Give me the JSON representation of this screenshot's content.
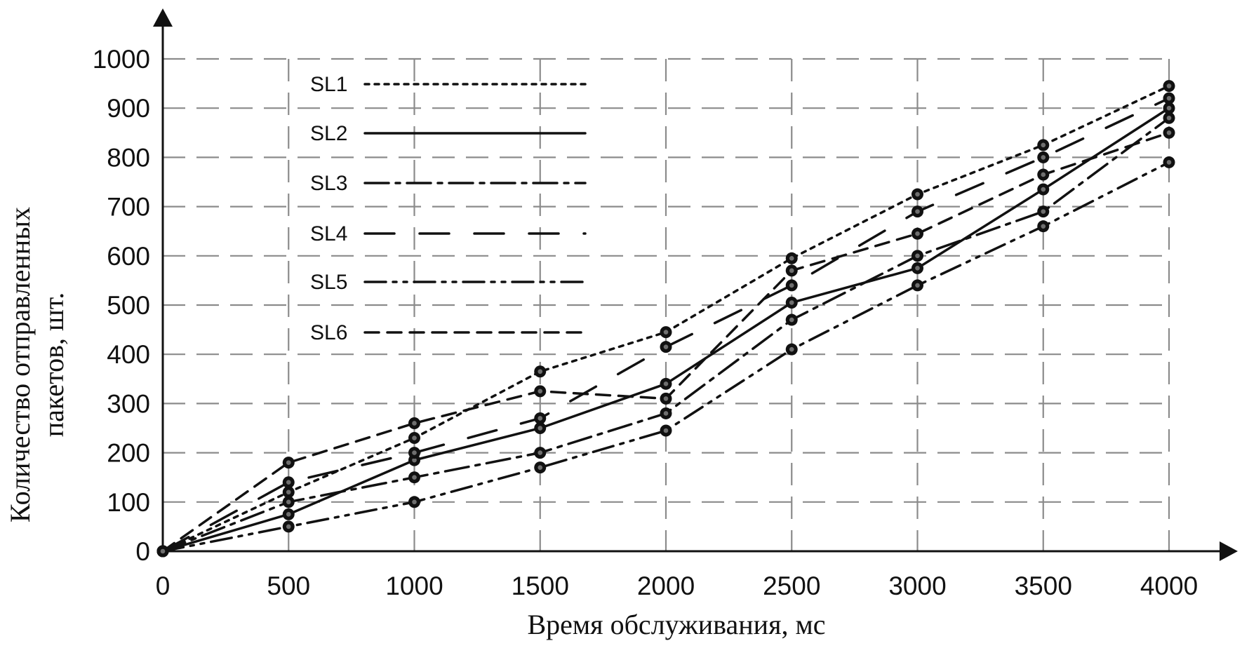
{
  "chart_data": {
    "type": "line",
    "title": "",
    "xlabel": "Время обслуживания, мс",
    "ylabel_lines": [
      "Количество отправленных",
      "пакетов, шт."
    ],
    "x": [
      0,
      500,
      1000,
      1500,
      2000,
      2500,
      3000,
      3500,
      4000
    ],
    "xlim": [
      0,
      4000
    ],
    "ylim": [
      0,
      1000
    ],
    "x_ticks": [
      0,
      500,
      1000,
      1500,
      2000,
      2500,
      3000,
      3500,
      4000
    ],
    "y_ticks": [
      0,
      100,
      200,
      300,
      400,
      500,
      600,
      700,
      800,
      900,
      1000
    ],
    "grid": true,
    "legend_position": "top-left",
    "series": [
      {
        "name": "SL1",
        "values": [
          0,
          120,
          230,
          365,
          445,
          595,
          725,
          825,
          945
        ]
      },
      {
        "name": "SL2",
        "values": [
          0,
          75,
          185,
          250,
          340,
          505,
          575,
          735,
          900
        ]
      },
      {
        "name": "SL3",
        "values": [
          0,
          100,
          150,
          200,
          280,
          470,
          600,
          690,
          880
        ]
      },
      {
        "name": "SL4",
        "values": [
          0,
          140,
          200,
          270,
          415,
          540,
          690,
          800,
          920
        ]
      },
      {
        "name": "SL5",
        "values": [
          0,
          50,
          100,
          170,
          245,
          410,
          540,
          660,
          790
        ]
      },
      {
        "name": "SL6",
        "values": [
          0,
          180,
          260,
          325,
          310,
          570,
          645,
          765,
          850
        ]
      }
    ]
  }
}
